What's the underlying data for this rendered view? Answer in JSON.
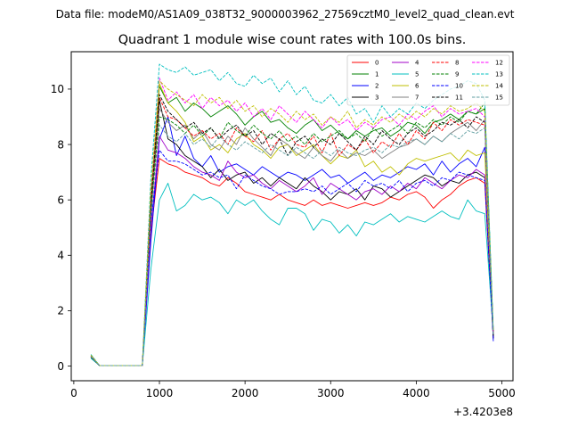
{
  "suptitle": "Data file: modeM0/AS1A09_038T32_9000003962_27569cztM0_level2_quad_clean.evt",
  "chart_data": {
    "type": "line",
    "title": "Quadrant 1 module wise count rates with 100.0s bins.",
    "xlabel": "",
    "ylabel": "",
    "x_offset_label": "+3.4203e8",
    "xlim": [
      -30,
      5130
    ],
    "ylim": [
      -0.53,
      11.35
    ],
    "xticks": [
      0,
      1000,
      2000,
      3000,
      4000,
      5000
    ],
    "yticks": [
      0,
      2,
      4,
      6,
      8,
      10
    ],
    "x": [
      200,
      300,
      400,
      500,
      600,
      700,
      800,
      900,
      1000,
      1100,
      1200,
      1300,
      1400,
      1500,
      1600,
      1700,
      1800,
      1900,
      2000,
      2100,
      2200,
      2300,
      2400,
      2500,
      2600,
      2700,
      2800,
      2900,
      3000,
      3100,
      3200,
      3300,
      3400,
      3500,
      3600,
      3700,
      3800,
      3900,
      4000,
      4100,
      4200,
      4300,
      4400,
      4500,
      4600,
      4700,
      4800,
      4900
    ],
    "legend": {
      "position": "top-right",
      "ncol": 4
    },
    "series": [
      {
        "name": "0",
        "color": "#ff0000",
        "dash": "solid",
        "values": [
          0.35,
          0.02,
          0.02,
          0.02,
          0.02,
          0.02,
          0.02,
          4.8,
          7.5,
          7.3,
          7.2,
          7.0,
          6.9,
          6.8,
          6.6,
          6.5,
          6.8,
          6.6,
          6.3,
          6.2,
          6.1,
          6.0,
          6.2,
          6.0,
          5.9,
          5.8,
          6.0,
          5.8,
          5.9,
          5.8,
          5.7,
          5.8,
          5.9,
          5.8,
          5.9,
          6.1,
          6.0,
          6.2,
          6.3,
          6.1,
          5.7,
          6.0,
          6.2,
          6.5,
          6.7,
          6.8,
          6.6,
          1.0
        ]
      },
      {
        "name": "1",
        "color": "#008000",
        "dash": "solid",
        "values": [
          0.3,
          0.02,
          0.02,
          0.02,
          0.02,
          0.02,
          0.02,
          6.0,
          10.1,
          9.5,
          9.7,
          9.2,
          9.5,
          9.3,
          9.0,
          9.2,
          9.4,
          9.1,
          8.7,
          9.0,
          9.2,
          8.8,
          8.9,
          8.6,
          8.4,
          8.7,
          8.9,
          8.5,
          8.7,
          8.4,
          8.2,
          8.5,
          8.3,
          8.5,
          8.6,
          8.3,
          8.5,
          8.8,
          8.7,
          8.4,
          8.8,
          8.9,
          9.1,
          8.9,
          9.2,
          9.1,
          9.3,
          1.1
        ]
      },
      {
        "name": "2",
        "color": "#0000ff",
        "dash": "solid",
        "values": [
          0.32,
          0.02,
          0.02,
          0.02,
          0.02,
          0.02,
          0.02,
          4.5,
          8.2,
          9.0,
          7.6,
          8.3,
          7.5,
          7.2,
          7.6,
          7.0,
          7.2,
          7.3,
          7.1,
          6.9,
          7.2,
          7.0,
          6.8,
          7.0,
          6.9,
          6.7,
          6.9,
          7.1,
          6.8,
          6.9,
          6.6,
          6.8,
          7.0,
          6.7,
          6.9,
          6.8,
          7.0,
          7.2,
          7.1,
          7.3,
          6.9,
          7.4,
          7.0,
          7.3,
          7.5,
          7.2,
          7.9,
          0.9
        ]
      },
      {
        "name": "3",
        "color": "#000000",
        "dash": "solid",
        "values": [
          0.33,
          0.02,
          0.02,
          0.02,
          0.02,
          0.02,
          0.02,
          5.5,
          9.6,
          8.2,
          8.0,
          7.6,
          7.4,
          7.2,
          6.8,
          7.1,
          6.7,
          6.9,
          7.0,
          6.6,
          6.8,
          6.5,
          6.8,
          6.6,
          6.4,
          6.8,
          6.5,
          6.3,
          6.0,
          6.3,
          6.2,
          6.4,
          6.0,
          6.5,
          6.4,
          6.1,
          6.3,
          6.5,
          6.7,
          6.9,
          6.8,
          6.5,
          6.7,
          6.6,
          6.9,
          7.0,
          6.8,
          1.0
        ]
      },
      {
        "name": "4",
        "color": "#a000c8",
        "dash": "solid",
        "values": [
          0.34,
          0.02,
          0.02,
          0.02,
          0.02,
          0.02,
          0.02,
          5.0,
          8.3,
          7.8,
          7.7,
          7.5,
          7.2,
          7.0,
          6.9,
          6.7,
          7.4,
          7.0,
          6.8,
          6.9,
          6.6,
          6.4,
          6.7,
          6.5,
          6.3,
          6.5,
          6.8,
          6.2,
          6.6,
          6.4,
          6.2,
          6.0,
          6.3,
          6.4,
          6.2,
          6.5,
          6.3,
          6.6,
          6.4,
          6.8,
          6.6,
          6.4,
          6.7,
          6.9,
          6.8,
          7.1,
          6.9,
          1.1
        ]
      },
      {
        "name": "5",
        "color": "#00bfbf",
        "dash": "solid",
        "values": [
          0.28,
          0.02,
          0.02,
          0.02,
          0.02,
          0.02,
          0.02,
          3.5,
          6.0,
          6.6,
          5.6,
          5.8,
          6.2,
          6.0,
          6.1,
          5.9,
          5.5,
          6.0,
          5.8,
          6.0,
          5.6,
          5.3,
          5.1,
          5.7,
          5.7,
          5.5,
          4.9,
          5.3,
          5.2,
          4.8,
          5.1,
          4.7,
          5.2,
          5.1,
          5.3,
          5.5,
          5.2,
          5.4,
          5.3,
          5.2,
          5.4,
          5.6,
          5.4,
          5.3,
          6.0,
          5.6,
          5.5,
          1.2
        ]
      },
      {
        "name": "6",
        "color": "#bfbf00",
        "dash": "solid",
        "values": [
          0.4,
          0.02,
          0.02,
          0.02,
          0.02,
          0.02,
          0.02,
          6.1,
          10.2,
          9.5,
          9.2,
          8.8,
          8.1,
          8.3,
          7.8,
          8.0,
          7.7,
          8.2,
          8.4,
          8.0,
          7.8,
          7.5,
          7.9,
          8.0,
          7.6,
          7.8,
          8.0,
          7.6,
          7.3,
          7.6,
          7.5,
          7.8,
          7.2,
          7.4,
          7.0,
          7.2,
          6.9,
          7.3,
          7.5,
          7.4,
          7.5,
          7.6,
          7.7,
          7.4,
          7.8,
          7.6,
          7.7,
          1.2
        ]
      },
      {
        "name": "7",
        "color": "#808080",
        "dash": "solid",
        "values": [
          0.36,
          0.02,
          0.02,
          0.02,
          0.02,
          0.02,
          0.02,
          5.7,
          9.3,
          8.8,
          8.5,
          8.7,
          8.2,
          8.5,
          8.0,
          7.8,
          8.3,
          8.0,
          8.6,
          8.2,
          7.9,
          7.6,
          8.2,
          8.0,
          7.7,
          7.5,
          7.9,
          7.6,
          7.4,
          7.8,
          7.5,
          7.7,
          7.6,
          7.8,
          7.5,
          7.7,
          7.9,
          8.0,
          8.2,
          8.0,
          8.3,
          8.1,
          8.4,
          8.6,
          8.8,
          8.5,
          8.9,
          1.1
        ]
      },
      {
        "name": "8",
        "color": "#ff0000",
        "dash": "dashed",
        "values": [
          0.37,
          0.02,
          0.02,
          0.02,
          0.02,
          0.02,
          0.02,
          5.8,
          9.7,
          9.0,
          8.9,
          8.6,
          8.3,
          8.5,
          8.2,
          8.4,
          8.0,
          8.6,
          8.3,
          8.1,
          8.5,
          7.8,
          8.2,
          8.4,
          8.0,
          7.9,
          8.3,
          7.7,
          8.4,
          7.6,
          8.0,
          7.8,
          8.2,
          7.7,
          8.1,
          7.9,
          8.4,
          8.0,
          8.5,
          8.2,
          8.8,
          8.5,
          8.9,
          8.7,
          8.9,
          8.8,
          8.7,
          1.2
        ]
      },
      {
        "name": "9",
        "color": "#008000",
        "dash": "dashed",
        "values": [
          0.31,
          0.02,
          0.02,
          0.02,
          0.02,
          0.02,
          0.02,
          5.6,
          9.0,
          8.9,
          8.7,
          8.4,
          8.7,
          8.3,
          8.6,
          8.2,
          8.8,
          8.5,
          8.3,
          8.7,
          8.4,
          8.2,
          8.5,
          8.1,
          8.3,
          8.0,
          8.4,
          8.1,
          8.3,
          8.5,
          8.2,
          8.4,
          8.1,
          8.6,
          8.3,
          8.5,
          8.7,
          8.4,
          8.8,
          8.6,
          8.9,
          8.7,
          9.0,
          8.8,
          9.2,
          9.1,
          9.5,
          1.2
        ]
      },
      {
        "name": "10",
        "color": "#0000ff",
        "dash": "dashed",
        "values": [
          0.33,
          0.02,
          0.02,
          0.02,
          0.02,
          0.02,
          0.02,
          5.2,
          7.8,
          7.4,
          7.4,
          7.3,
          7.1,
          6.9,
          7.0,
          6.8,
          6.9,
          6.4,
          6.9,
          6.7,
          6.5,
          6.4,
          6.2,
          6.3,
          6.3,
          6.4,
          6.3,
          6.5,
          6.2,
          6.4,
          6.6,
          6.3,
          6.7,
          6.5,
          6.6,
          6.4,
          6.7,
          6.3,
          6.6,
          6.7,
          6.5,
          6.8,
          6.7,
          7.0,
          6.9,
          6.8,
          6.7,
          1.0
        ]
      },
      {
        "name": "11",
        "color": "#000000",
        "dash": "dashed",
        "values": [
          0.35,
          0.02,
          0.02,
          0.02,
          0.02,
          0.02,
          0.02,
          5.9,
          9.8,
          9.2,
          8.9,
          8.6,
          8.8,
          8.4,
          8.6,
          8.2,
          8.5,
          8.7,
          8.3,
          8.5,
          8.0,
          8.4,
          8.2,
          7.6,
          8.1,
          8.3,
          7.9,
          8.2,
          8.0,
          8.4,
          8.1,
          7.8,
          8.3,
          8.0,
          8.5,
          8.2,
          8.0,
          8.4,
          8.6,
          8.3,
          8.5,
          8.8,
          8.7,
          8.9,
          8.6,
          9.0,
          8.8,
          1.1
        ]
      },
      {
        "name": "12",
        "color": "#ff00ff",
        "dash": "dashed",
        "values": [
          0.38,
          0.02,
          0.02,
          0.02,
          0.02,
          0.02,
          0.02,
          6.3,
          10.4,
          9.6,
          9.9,
          9.5,
          9.8,
          9.3,
          9.7,
          9.4,
          9.6,
          9.2,
          9.5,
          9.0,
          9.3,
          8.9,
          9.4,
          9.1,
          8.8,
          9.2,
          8.9,
          8.6,
          9.0,
          8.7,
          8.9,
          8.5,
          8.8,
          8.6,
          8.9,
          9.0,
          8.7,
          9.1,
          8.9,
          9.2,
          9.4,
          9.0,
          9.3,
          9.1,
          9.2,
          9.3,
          9.0,
          1.2
        ]
      },
      {
        "name": "13",
        "color": "#00bfbf",
        "dash": "dashed",
        "values": [
          0.42,
          0.02,
          0.02,
          0.02,
          0.02,
          0.02,
          0.02,
          6.8,
          10.9,
          10.7,
          10.6,
          10.8,
          10.5,
          10.6,
          10.7,
          10.3,
          10.6,
          10.2,
          10.1,
          10.5,
          10.2,
          10.4,
          9.9,
          10.3,
          9.8,
          10.1,
          9.6,
          9.5,
          9.8,
          9.4,
          9.7,
          9.1,
          9.3,
          8.8,
          9.4,
          9.0,
          9.3,
          9.1,
          9.5,
          9.3,
          9.6,
          9.8,
          10.0,
          10.1,
          10.3,
          10.2,
          9.6,
          1.3
        ]
      },
      {
        "name": "14",
        "color": "#bfbf00",
        "dash": "dashed",
        "values": [
          0.39,
          0.02,
          0.02,
          0.02,
          0.02,
          0.02,
          0.02,
          6.4,
          10.3,
          10.0,
          9.8,
          9.6,
          9.4,
          9.8,
          9.5,
          9.7,
          9.3,
          9.6,
          9.2,
          9.4,
          9.0,
          9.3,
          9.1,
          8.8,
          9.2,
          8.9,
          9.1,
          8.7,
          9.0,
          8.8,
          9.2,
          8.6,
          8.9,
          8.7,
          9.0,
          8.8,
          9.1,
          8.9,
          9.2,
          9.0,
          9.3,
          9.1,
          9.4,
          9.2,
          9.3,
          9.5,
          9.2,
          1.2
        ]
      },
      {
        "name": "15",
        "color": "#5f9ea0",
        "dash": "dashed",
        "values": [
          0.34,
          0.02,
          0.02,
          0.02,
          0.02,
          0.02,
          0.02,
          5.4,
          8.7,
          8.3,
          8.1,
          8.4,
          8.0,
          8.2,
          7.9,
          8.3,
          8.0,
          7.8,
          8.1,
          7.9,
          7.7,
          8.0,
          7.8,
          7.6,
          7.9,
          7.7,
          7.5,
          7.8,
          7.6,
          7.9,
          7.7,
          7.6,
          7.8,
          7.9,
          7.7,
          8.0,
          7.9,
          8.1,
          8.2,
          8.0,
          8.3,
          8.1,
          8.4,
          8.2,
          8.5,
          8.4,
          8.6,
          1.1
        ]
      }
    ]
  }
}
